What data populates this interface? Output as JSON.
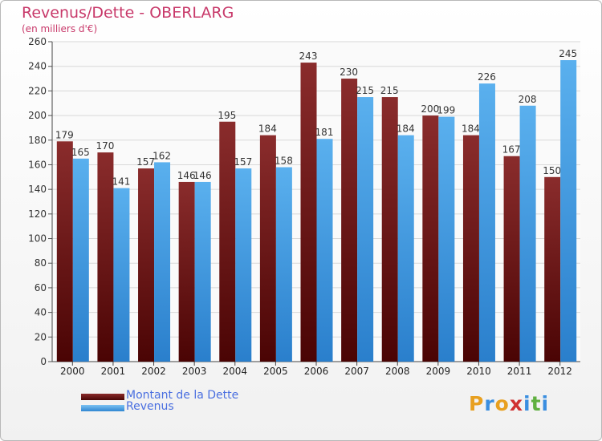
{
  "chart_data": {
    "type": "bar",
    "title": "Revenus/Dette - OBERLARG",
    "subtitle": "(en milliers d'€)",
    "categories": [
      "2000",
      "2001",
      "2002",
      "2003",
      "2004",
      "2005",
      "2006",
      "2007",
      "2008",
      "2009",
      "2010",
      "2011",
      "2012"
    ],
    "series": [
      {
        "name": "Montant de la Dette",
        "color": "#6b1010",
        "values": [
          179,
          170,
          157,
          146,
          195,
          184,
          243,
          230,
          215,
          200,
          184,
          167,
          150
        ]
      },
      {
        "name": "Revenus",
        "color": "#4da6e8",
        "values": [
          165,
          141,
          162,
          146,
          157,
          158,
          181,
          215,
          184,
          199,
          226,
          208,
          245
        ]
      }
    ],
    "ylim": [
      0,
      260
    ],
    "yticks": [
      0,
      20,
      40,
      60,
      80,
      100,
      120,
      140,
      160,
      180,
      200,
      220,
      240,
      260
    ],
    "grid": true,
    "legend_position": "bottom-left"
  },
  "logo": {
    "text": "Proxiti",
    "colors": [
      "#e8a020",
      "#3a8ee0",
      "#e8a020",
      "#d03030",
      "#3a8ee0",
      "#60b040",
      "#3a8ee0"
    ]
  }
}
